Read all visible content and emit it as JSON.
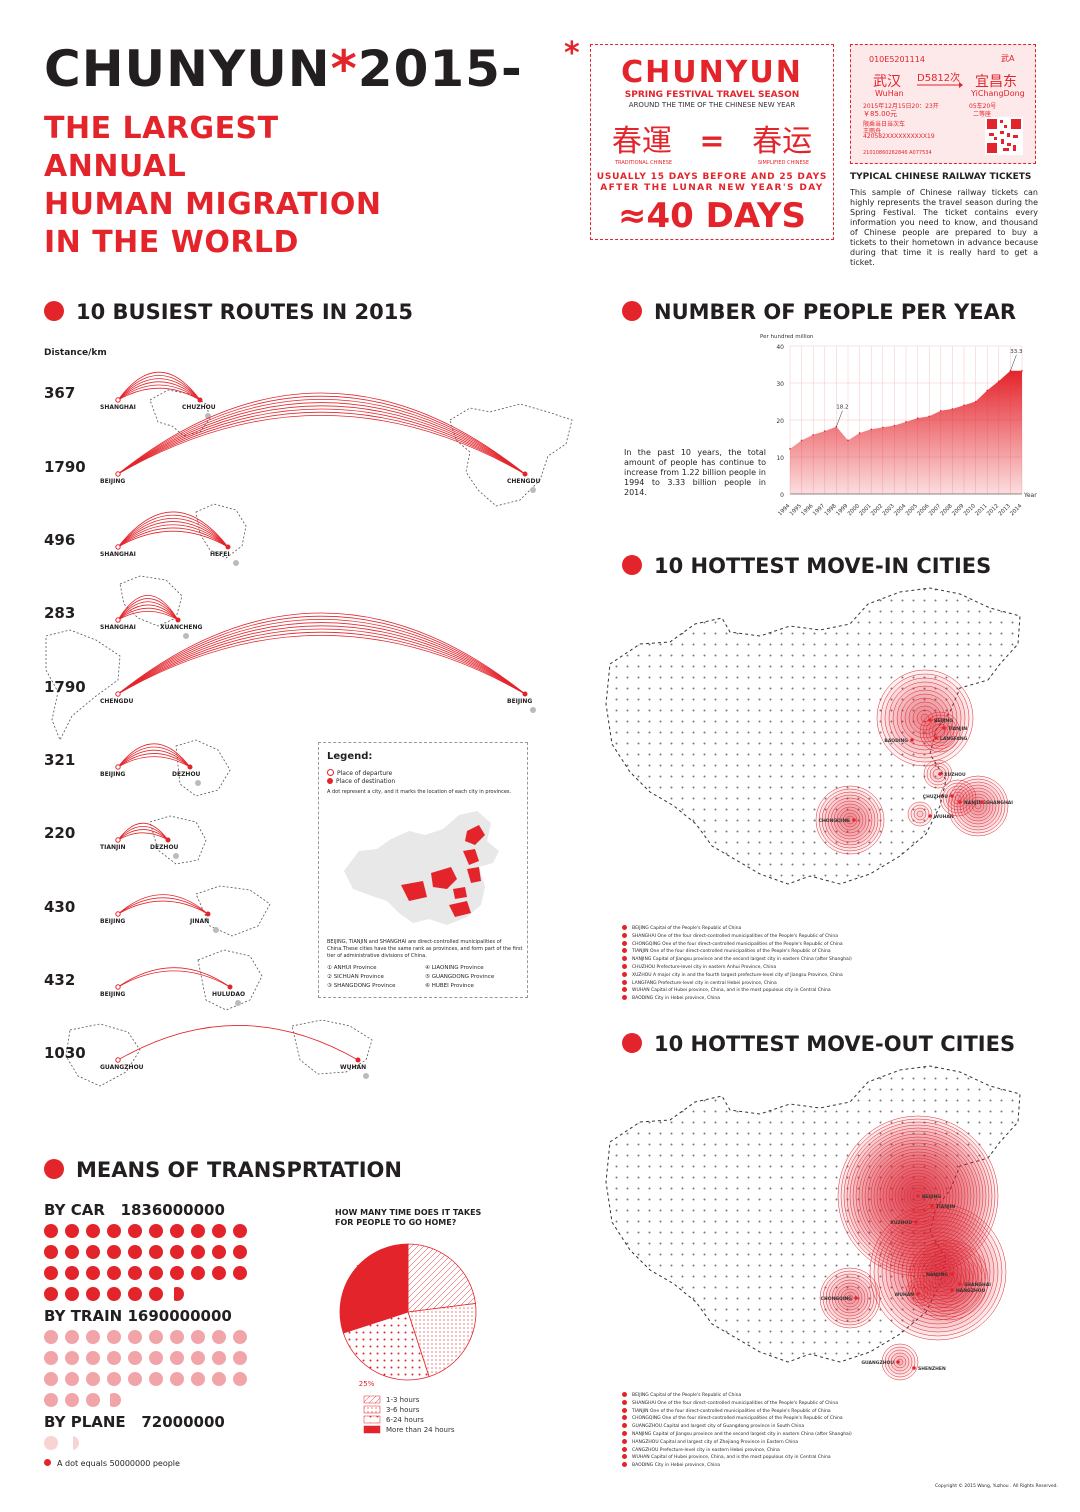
{
  "header": {
    "title_main": "CHUNYUN",
    "title_star": "*",
    "title_year": "2015-",
    "title_star2": "*",
    "subtitle_lines": [
      "THE LARGEST",
      "ANNUAL",
      "HUMAN MIGRATION",
      "IN THE WORLD"
    ]
  },
  "chunyun_box": {
    "title": "CHUNYUN",
    "line1": "SPRING FESTIVAL TRAVEL SEASON",
    "line2": "AROUND THE TIME OF THE CHINESE NEW YEAR",
    "traditional": "春運",
    "equals": "=",
    "simplified": "春运",
    "traditional_label": "TRADITIONAL CHINESE",
    "simplified_label": "SIMPLIFIED CHINESE",
    "usually1": "USUALLY 15 DAYS BEFORE AND 25 DAYS",
    "usually2": "AFTER THE LUNAR NEW YEAR'S DAY",
    "days": "≈40 DAYS"
  },
  "ticket": {
    "code": "010E5201114",
    "station_code": "武A",
    "from_cn": "武汉",
    "from_en": "WuHan",
    "train": "D5812次",
    "to_cn": "宜昌东",
    "to_en": "YiChangDong",
    "date": "2015年12月15日20：23开",
    "seat": "05车20号",
    "price": "￥85.00元",
    "class": "二等座",
    "note": "限乘当日当次车",
    "name": "王雨舟",
    "id": "420582XXXXXXXXXX19",
    "serial": "21010860262846 A077534",
    "caption": "TYPICAL CHINESE RAILWAY TICKETS",
    "description": "This sample of Chinese railway tickets can highly represents the travel season during the Spring Festival. The ticket contains every information you need to know, and thousand of Chinese people are prepared to buy a tickets to their hometown in advance because during that time it is really hard to get a ticket."
  },
  "routes": {
    "title": "10 BUSIEST ROUTES IN 2015",
    "unit": "Distance/km",
    "items": [
      {
        "distance": "367",
        "from": "SHANGHAI",
        "to": "CHUZHOU"
      },
      {
        "distance": "1790",
        "from": "BEIJING",
        "to": "CHENGDU"
      },
      {
        "distance": "496",
        "from": "SHANGHAI",
        "to": "HEFEI"
      },
      {
        "distance": "283",
        "from": "SHANGHAI",
        "to": "XUANCHENG"
      },
      {
        "distance": "1790",
        "from": "CHENGDU",
        "to": "BEIJING"
      },
      {
        "distance": "321",
        "from": "BEIJING",
        "to": "DEZHOU"
      },
      {
        "distance": "220",
        "from": "TIANJIN",
        "to": "DEZHOU"
      },
      {
        "distance": "430",
        "from": "BEIJING",
        "to": "JINAN"
      },
      {
        "distance": "432",
        "from": "BEIJING",
        "to": "HULUDAO"
      },
      {
        "distance": "1030",
        "from": "GUANGZHOU",
        "to": "WUHAN"
      }
    ]
  },
  "legend": {
    "title": "Legend:",
    "departure": "Place of departure",
    "destination": "Place of destination",
    "note": "A dot represent a city, and it marks the location of each city in provinces.",
    "municipal": "BEIJING, TIANJIN and SHANGHAI are direct-controlled municipalities of China.These cities have the same rank as provinces, and form part of the first tier of administrative divisions of China.",
    "provinces": [
      "ANHUI Province",
      "LIAONING Province",
      "SICHUAN Province",
      "GUANGDONG Province",
      "SHANGDONG Province",
      "HUBEI Province"
    ]
  },
  "people": {
    "title": "NUMBER OF PEOPLE PER YEAR",
    "description": "In the past 10 years, the total amount of people has continue to increase from 1.22 billion people in 1994 to 3.33 billion people in 2014."
  },
  "chart_data": {
    "type": "area",
    "title": "NUMBER OF PEOPLE PER YEAR",
    "ylabel": "Per hundred million",
    "xlabel": "Year",
    "ylim": [
      0,
      40
    ],
    "yticks": [
      0,
      10,
      20,
      30,
      40
    ],
    "x": [
      "1994",
      "1995",
      "1996",
      "1997",
      "1998",
      "1999",
      "2000",
      "2001",
      "2002",
      "2003",
      "2004",
      "2005",
      "2006",
      "2007",
      "2008",
      "2009",
      "2010",
      "2011",
      "2012",
      "2013",
      "2014"
    ],
    "values": [
      12.2,
      14.5,
      16.0,
      17.0,
      18.2,
      14.5,
      16.5,
      17.5,
      18.0,
      18.5,
      19.5,
      20.5,
      21.0,
      22.5,
      23.0,
      24.0,
      25.0,
      28.0,
      30.5,
      33.3,
      33.3
    ],
    "annotations": [
      {
        "x": "1998",
        "label": "18.2"
      },
      {
        "x": "2013",
        "label": "33.3"
      }
    ]
  },
  "move_in": {
    "title": "10 HOTTEST  MOVE-IN CITIES",
    "cities": [
      "BEIJING",
      "TIANJIN",
      "LANGFANG",
      "BAODING",
      "XUZHOU",
      "CHUZHOU",
      "NANJING",
      "SHANGHAI",
      "CHONGQING",
      "WUHAN"
    ],
    "notes": [
      "BEIJING  Capital of the People's Republic of China",
      "SHANGHAI  One of the four direct-controlled municipalities of the People's Republic of China",
      "CHONGQING  One of the four direct-controlled municipalities of the People's Republic of China",
      "TIANJIN  One of the four direct-controlled municipalities of the People's Republic of China",
      "NANJING  Capital of Jiangsu province and the second largest city in eastern China (after Shanghai)",
      "CHUZHOU  Prefecture-level city in eastern Anhui Province, China",
      "XUZHOU  A major city in and the fourth largest prefecture-level city of Jiangsu Province, China",
      "LANGFANG  Prefecture-level city in central Hebei province, China",
      "WUHAN  Capital of Hubei province, China, and is the most populous city in Central China",
      "BAODING  City in Hebei province, China"
    ]
  },
  "move_out": {
    "title": "10 HOTTEST  MOVE-OUT  CITIES",
    "cities": [
      "BEIJING",
      "TIANJIN",
      "XUZHOU",
      "NANJING",
      "SHANGHAI",
      "HANGZHOU",
      "CHONGQING",
      "WUHAN",
      "GUANGZHOU",
      "SHENZHEN"
    ],
    "notes": [
      "BEIJING  Capital of the People's Republic of China",
      "SHANGHAI  One of the four direct-controlled municipalities of the People's Republic of China",
      "TIANJIN  One of the four direct-controlled municipalities of the People's Republic of China",
      "CHONGQING  One of the four direct-controlled municipalities of the People's Republic of China",
      "GUANGZHOU  Capital and largest city of Guangdong province in South China",
      "NANJING  Capital of Jiangsu province and the second largest city in eastern China (after Shanghai)",
      "HANGZHOU  Capital and largest city of Zhejiang Province in Eastern China",
      "CANGZHOU  Prefecture-level city in eastern Hebei province, China",
      "WUHAN  Capital of Hubei province, China, and is the most populous city in Central China",
      "BAODING  City in Hebei province, China"
    ],
    "copyright": "Copyright © 2015 Wang, Yuzhou . All Rights Reserved."
  },
  "transport": {
    "title": "MEANS OF TRANSPRTATION",
    "car_label": "BY CAR",
    "car_value": "1836000000",
    "car_dots": 36.72,
    "train_label": "BY TRAIN",
    "train_value": "1690000000",
    "train_dots": 33.8,
    "plane_label": "BY PLANE",
    "plane_value": "72000000",
    "plane_dots": 1.44,
    "footnote": "A dot equals 50000000 people",
    "colors": {
      "car": "#e4242b",
      "train": "#f2a5a8",
      "plane": "#f8d3d4"
    }
  },
  "time_pie": {
    "title": "HOW  MANY TIME DOES IT TAKES FOR PEOPLE TO GO HOME?",
    "slices": [
      {
        "label": "1-3 hours",
        "value": 23,
        "text": "23%"
      },
      {
        "label": "3-6 hours",
        "value": 22,
        "text": "22%"
      },
      {
        "label": "6-24 hours",
        "value": 25,
        "text": "25%"
      },
      {
        "label": "More than 24 hours",
        "value": 30,
        "text": "30%"
      }
    ]
  }
}
